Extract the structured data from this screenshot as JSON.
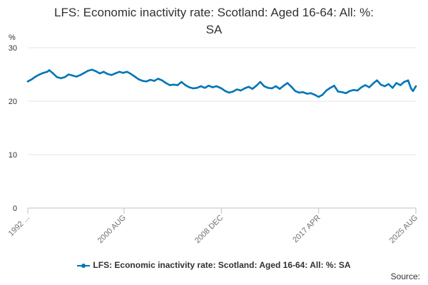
{
  "chart_data": {
    "type": "line",
    "title": "LFS: Economic inactivity rate: Scotland: Aged 16-64: All: %: SA",
    "title_lines": [
      "LFS: Economic inactivity rate: Scotland: Aged 16-64: All: %:",
      "SA"
    ],
    "ylabel": "%",
    "ylim": [
      0,
      30
    ],
    "yticks": [
      "0",
      "10",
      "20",
      "30"
    ],
    "xticks": [
      {
        "label": "1992 ...",
        "date": "1992-05"
      },
      {
        "label": "2000 AUG",
        "date": "2000-08"
      },
      {
        "label": "2008 DEC",
        "date": "2008-12"
      },
      {
        "label": "2017 APR",
        "date": "2017-04"
      },
      {
        "label": "2025 AUG",
        "date": "2025-08"
      }
    ],
    "grid": true,
    "legend_position": "bottom",
    "color": "#0075b7",
    "series": [
      {
        "name": "LFS: Economic inactivity rate: Scotland: Aged 16-64: All: %: SA",
        "points": [
          [
            "1992-05",
            23.7
          ],
          [
            "1992-09",
            24.1
          ],
          [
            "1993-01",
            24.6
          ],
          [
            "1993-05",
            25.0
          ],
          [
            "1993-09",
            25.3
          ],
          [
            "1994-01",
            25.5
          ],
          [
            "1994-03",
            25.8
          ],
          [
            "1994-07",
            25.2
          ],
          [
            "1994-11",
            24.5
          ],
          [
            "1995-03",
            24.3
          ],
          [
            "1995-07",
            24.5
          ],
          [
            "1995-11",
            25.0
          ],
          [
            "1996-03",
            24.8
          ],
          [
            "1996-07",
            24.6
          ],
          [
            "1996-11",
            24.9
          ],
          [
            "1997-03",
            25.3
          ],
          [
            "1997-07",
            25.7
          ],
          [
            "1997-11",
            25.9
          ],
          [
            "1998-03",
            25.6
          ],
          [
            "1998-07",
            25.2
          ],
          [
            "1998-11",
            25.5
          ],
          [
            "1999-03",
            25.1
          ],
          [
            "1999-07",
            24.9
          ],
          [
            "1999-11",
            25.2
          ],
          [
            "2000-03",
            25.5
          ],
          [
            "2000-07",
            25.3
          ],
          [
            "2000-11",
            25.5
          ],
          [
            "2001-03",
            25.1
          ],
          [
            "2001-07",
            24.6
          ],
          [
            "2001-11",
            24.1
          ],
          [
            "2002-03",
            23.8
          ],
          [
            "2002-07",
            23.7
          ],
          [
            "2002-11",
            24.0
          ],
          [
            "2003-03",
            23.8
          ],
          [
            "2003-07",
            24.2
          ],
          [
            "2003-11",
            23.9
          ],
          [
            "2004-03",
            23.4
          ],
          [
            "2004-07",
            23.0
          ],
          [
            "2004-11",
            23.1
          ],
          [
            "2005-03",
            23.0
          ],
          [
            "2005-07",
            23.6
          ],
          [
            "2005-11",
            23.0
          ],
          [
            "2006-03",
            22.6
          ],
          [
            "2006-07",
            22.4
          ],
          [
            "2006-11",
            22.5
          ],
          [
            "2007-03",
            22.8
          ],
          [
            "2007-07",
            22.5
          ],
          [
            "2007-11",
            22.9
          ],
          [
            "2008-03",
            22.6
          ],
          [
            "2008-07",
            22.8
          ],
          [
            "2008-12",
            22.4
          ],
          [
            "2009-04",
            21.9
          ],
          [
            "2009-08",
            21.6
          ],
          [
            "2009-12",
            21.8
          ],
          [
            "2010-04",
            22.2
          ],
          [
            "2010-08",
            22.0
          ],
          [
            "2010-12",
            22.4
          ],
          [
            "2011-04",
            22.7
          ],
          [
            "2011-08",
            22.3
          ],
          [
            "2011-12",
            22.9
          ],
          [
            "2012-04",
            23.6
          ],
          [
            "2012-08",
            22.8
          ],
          [
            "2012-12",
            22.5
          ],
          [
            "2013-04",
            22.4
          ],
          [
            "2013-08",
            22.8
          ],
          [
            "2013-12",
            22.3
          ],
          [
            "2014-04",
            22.9
          ],
          [
            "2014-08",
            23.4
          ],
          [
            "2014-12",
            22.7
          ],
          [
            "2015-04",
            21.9
          ],
          [
            "2015-08",
            21.6
          ],
          [
            "2015-12",
            21.7
          ],
          [
            "2016-04",
            21.4
          ],
          [
            "2016-08",
            21.5
          ],
          [
            "2016-12",
            21.2
          ],
          [
            "2017-04",
            20.8
          ],
          [
            "2017-08",
            21.2
          ],
          [
            "2017-12",
            22.0
          ],
          [
            "2018-04",
            22.5
          ],
          [
            "2018-08",
            22.9
          ],
          [
            "2018-12",
            21.8
          ],
          [
            "2019-04",
            21.7
          ],
          [
            "2019-08",
            21.5
          ],
          [
            "2019-12",
            21.9
          ],
          [
            "2020-04",
            22.1
          ],
          [
            "2020-08",
            22.0
          ],
          [
            "2020-12",
            22.6
          ],
          [
            "2021-04",
            23.0
          ],
          [
            "2021-08",
            22.6
          ],
          [
            "2021-12",
            23.3
          ],
          [
            "2022-04",
            23.9
          ],
          [
            "2022-08",
            23.1
          ],
          [
            "2022-12",
            22.8
          ],
          [
            "2023-04",
            23.2
          ],
          [
            "2023-08",
            22.5
          ],
          [
            "2023-12",
            23.4
          ],
          [
            "2024-04",
            23.0
          ],
          [
            "2024-08",
            23.6
          ],
          [
            "2024-12",
            23.9
          ],
          [
            "2025-03",
            22.4
          ],
          [
            "2025-05",
            21.9
          ],
          [
            "2025-08",
            22.8
          ]
        ]
      }
    ]
  },
  "legend": {
    "label": "LFS: Economic inactivity rate: Scotland: Aged 16-64: All: %: SA"
  },
  "footer": {
    "source_label": "Source:"
  }
}
